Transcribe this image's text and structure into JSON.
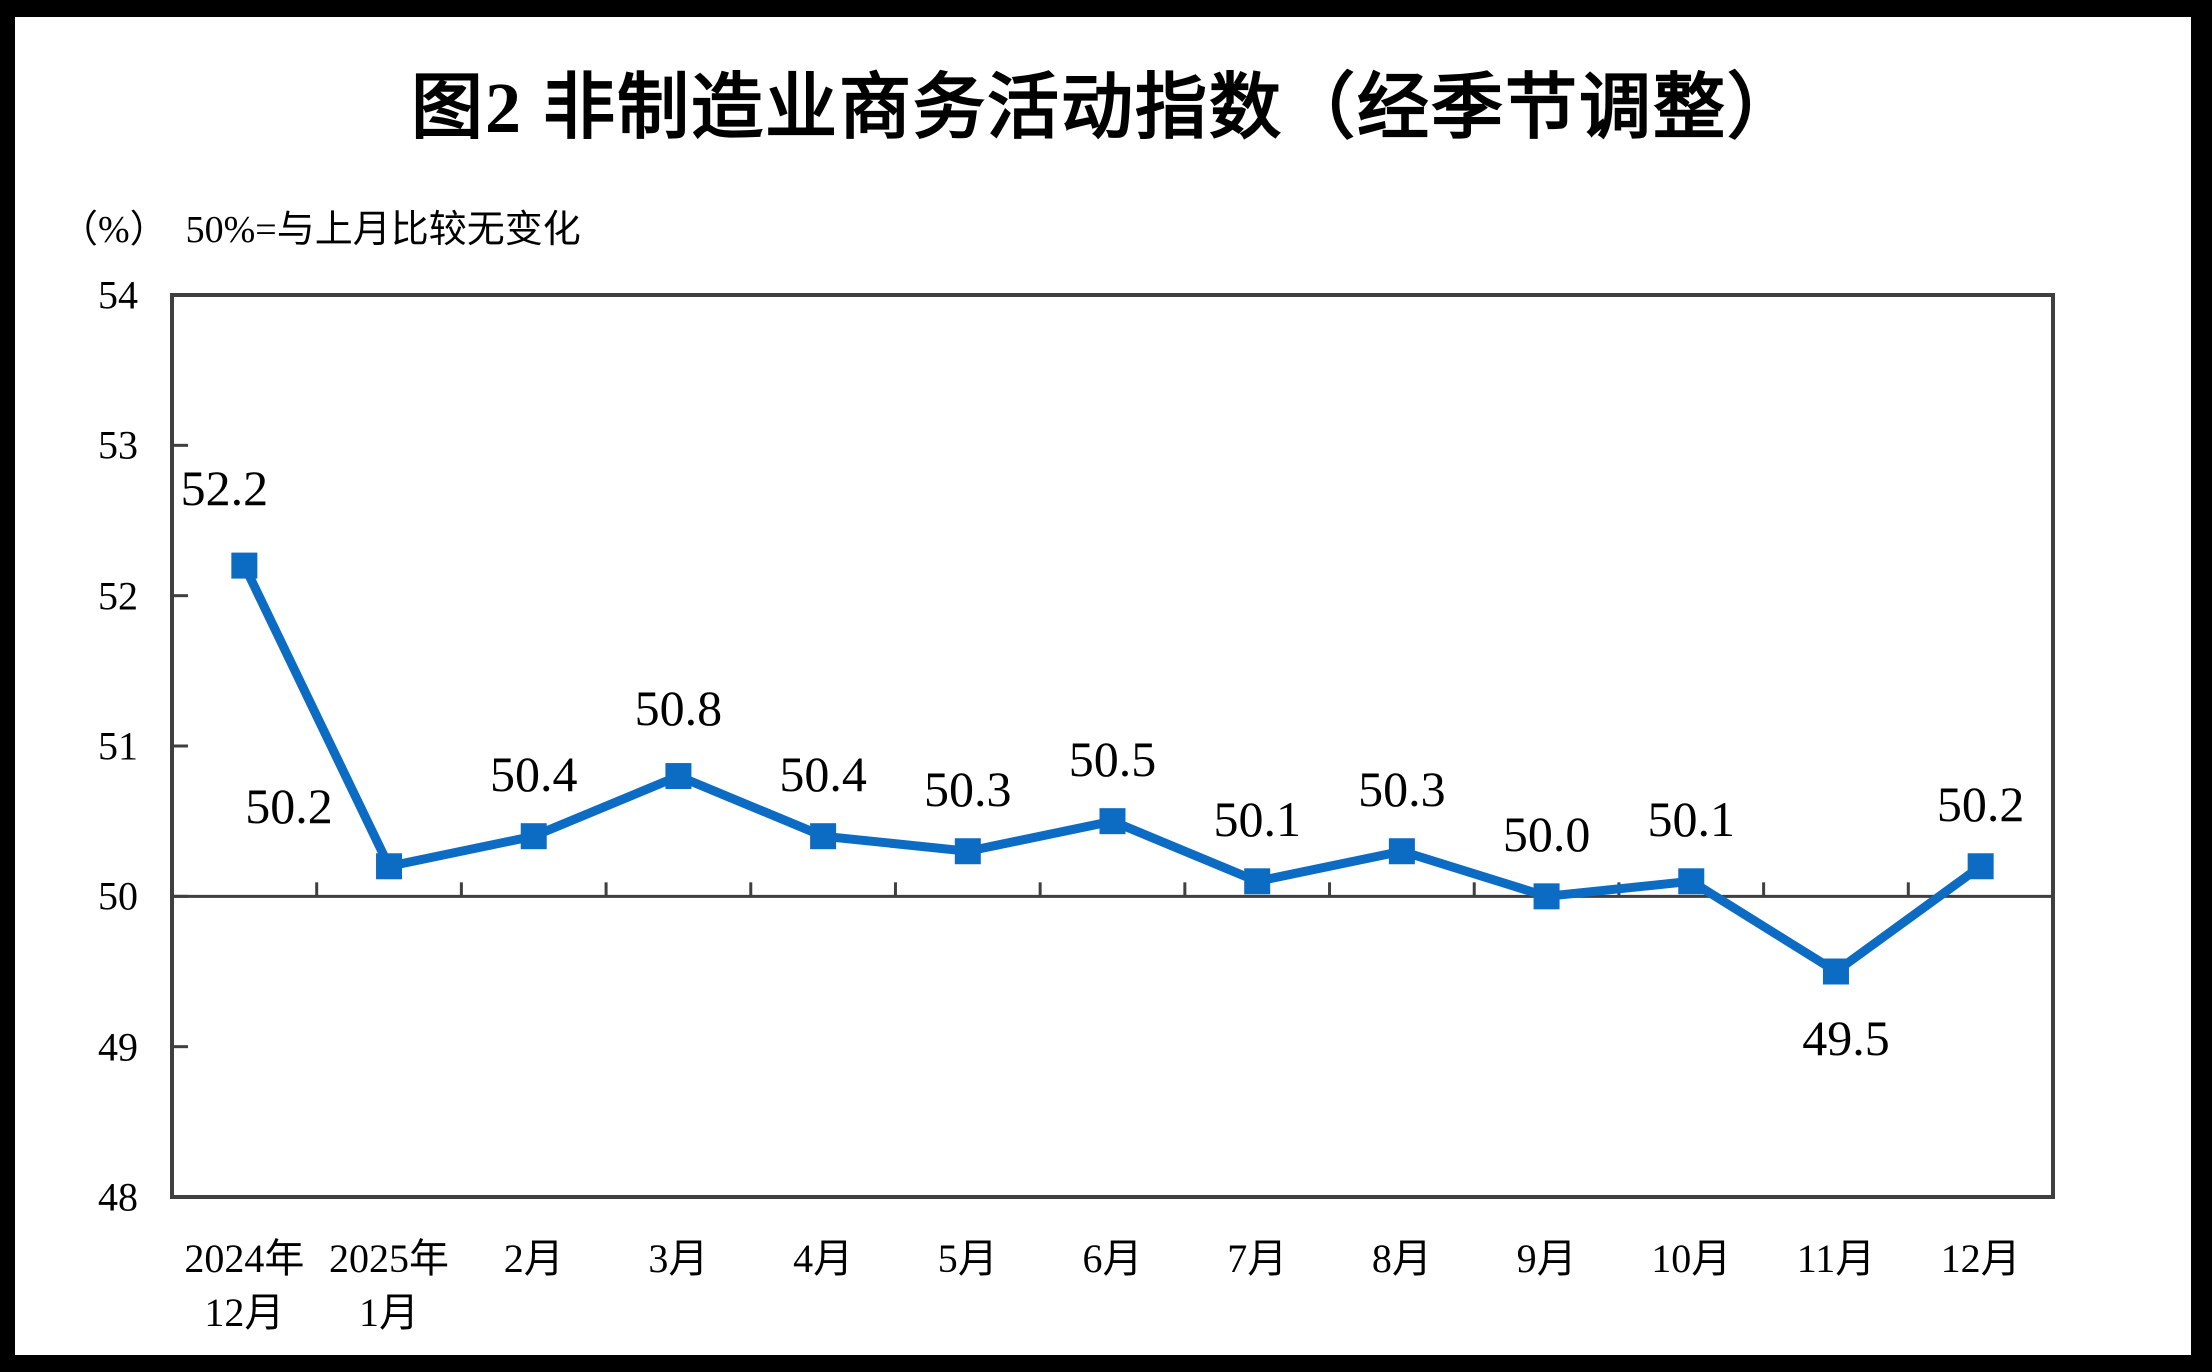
{
  "page": {
    "background": "#ffffff",
    "frame_color": "#000000"
  },
  "chart_data": {
    "type": "line",
    "title": "图2 非制造业商务活动指数（经季节调整）",
    "unit_label": "（%）",
    "subtitle": "50%=与上月比较无变化",
    "categories": [
      "2024年\n12月",
      "2025年\n1月",
      "2月",
      "3月",
      "4月",
      "5月",
      "6月",
      "7月",
      "8月",
      "9月",
      "10月",
      "11月",
      "12月"
    ],
    "series": [
      {
        "values": [
          52.2,
          50.2,
          50.4,
          50.8,
          50.4,
          50.3,
          50.5,
          50.1,
          50.3,
          50.0,
          50.1,
          49.5,
          50.2
        ]
      }
    ],
    "data_labels": [
      "52.2",
      "50.2",
      "50.4",
      "50.8",
      "50.4",
      "50.3",
      "50.5",
      "50.1",
      "50.3",
      "50.0",
      "50.1",
      "49.5",
      "50.2"
    ],
    "ylim": [
      48,
      54
    ],
    "yticks": [
      54,
      53,
      52,
      51,
      50,
      49,
      48
    ],
    "reference_line": 50,
    "grid": false,
    "legend": "none",
    "line_color": "#0c6cc4",
    "axis_color": "#3f3f3f",
    "label_color": "#000000"
  }
}
